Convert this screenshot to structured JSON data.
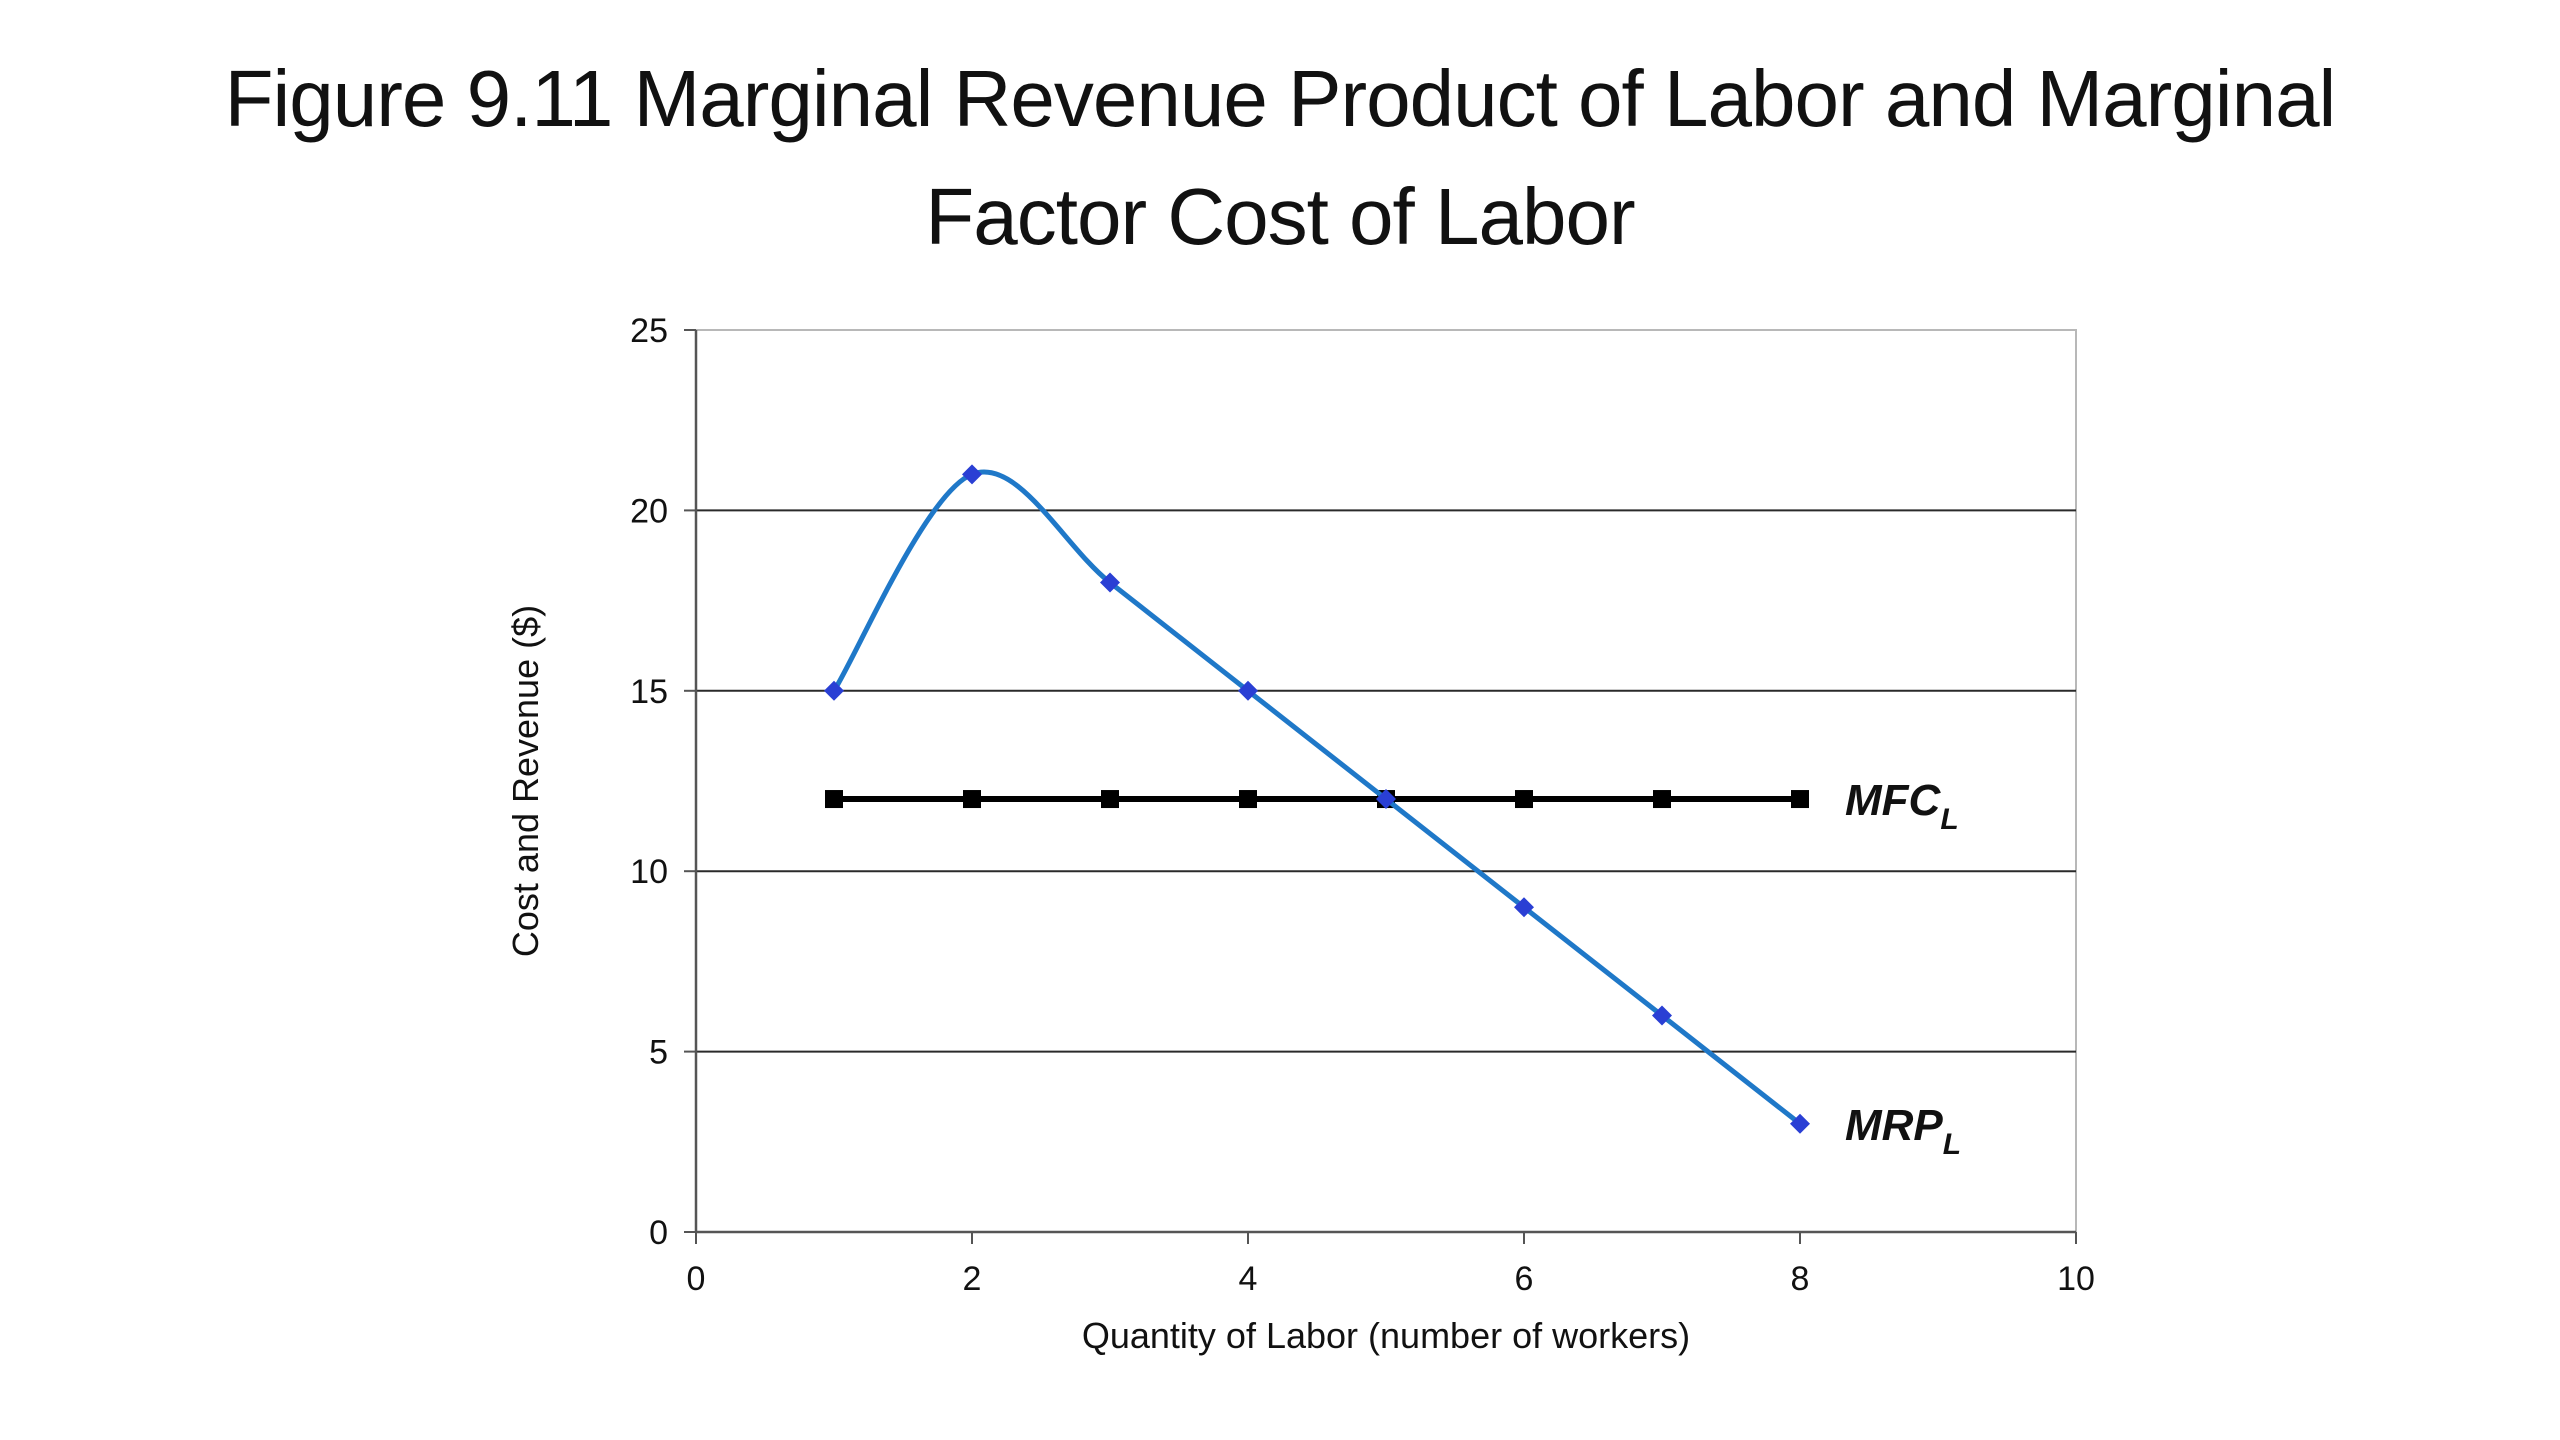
{
  "slide": {
    "title_line1": "Figure 9.11 Marginal Revenue Product of Labor and Marginal",
    "title_line2": "Factor Cost of Labor"
  },
  "chart_data": {
    "type": "line",
    "title": "Figure 9.11 Marginal Revenue Product of Labor and Marginal Factor Cost of Labor",
    "xlabel": "Quantity of Labor (number of workers)",
    "ylabel": "Cost and Revenue ($)",
    "xlim": [
      0,
      10
    ],
    "ylim": [
      0,
      25
    ],
    "xticks": [
      0,
      2,
      4,
      6,
      8,
      10
    ],
    "yticks": [
      0,
      5,
      10,
      15,
      20,
      25
    ],
    "grid": "horizontal",
    "series": [
      {
        "name": "MRP",
        "subscript": "L",
        "color": "#1f78c8",
        "marker": "diamond",
        "marker_color": "#2a3fd4",
        "smooth": true,
        "x": [
          1,
          2,
          3,
          4,
          5,
          6,
          7,
          8
        ],
        "y": [
          15,
          21,
          18,
          15,
          12,
          9,
          6,
          3
        ]
      },
      {
        "name": "MFC",
        "subscript": "L",
        "color": "#000000",
        "marker": "square",
        "marker_color": "#000000",
        "smooth": false,
        "x": [
          1,
          2,
          3,
          4,
          5,
          6,
          7,
          8
        ],
        "y": [
          12,
          12,
          12,
          12,
          12,
          12,
          12,
          12
        ]
      }
    ]
  }
}
